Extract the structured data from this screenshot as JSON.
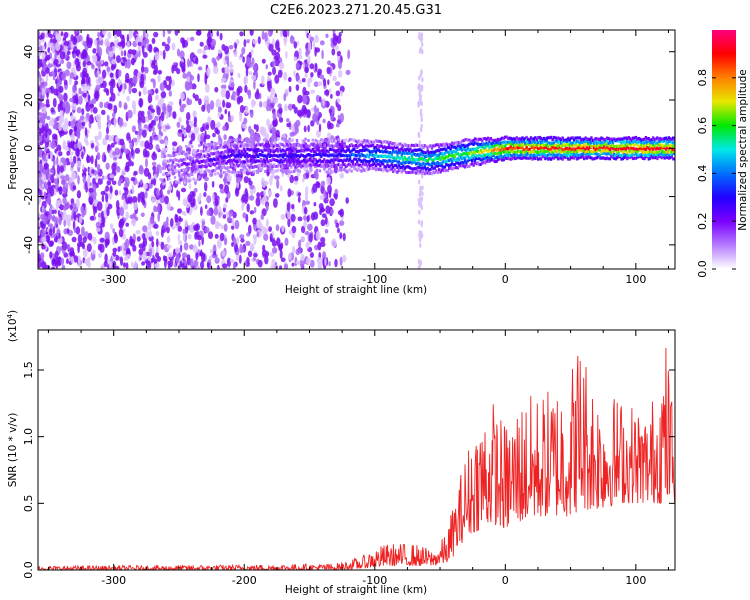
{
  "title": "C2E6.2023.271.20.45.G31",
  "chart_data": [
    {
      "type": "heatmap",
      "xlabel": "Height of straight line (km)",
      "ylabel": "Frequency (Hz)",
      "xlim": [
        -358,
        130
      ],
      "ylim": [
        -50,
        49
      ],
      "xticks": [
        -300,
        -200,
        -100,
        0,
        100
      ],
      "yticks": [
        -40,
        -20,
        0,
        20,
        40
      ],
      "colorbar": {
        "label": "Normalized spectral amplitude",
        "range": [
          0,
          1
        ],
        "ticks": [
          "0.0",
          "0.2",
          "0.4",
          "0.6",
          "0.8"
        ],
        "colormap": [
          "#ffffff",
          "#b57bff",
          "#7a00ff",
          "#2000ff",
          "#0070ff",
          "#00e8e8",
          "#00e800",
          "#e8e800",
          "#ff8000",
          "#ff0000",
          "#ff0080"
        ]
      },
      "ridge": {
        "description_values": "narrow band centered near 0 Hz; amplitude grows with height",
        "points": [
          {
            "x": -260,
            "freq": -8,
            "amp": 0.12
          },
          {
            "x": -230,
            "freq": -5,
            "amp": 0.2
          },
          {
            "x": -210,
            "freq": -3,
            "amp": 0.25
          },
          {
            "x": -130,
            "freq": -3,
            "amp": 0.3
          },
          {
            "x": -100,
            "freq": -3,
            "amp": 0.45
          },
          {
            "x": -60,
            "freq": -5,
            "amp": 0.55
          },
          {
            "x": -30,
            "freq": -2,
            "amp": 0.6
          },
          {
            "x": 0,
            "freq": 0,
            "amp": 0.85
          },
          {
            "x": 50,
            "freq": 0,
            "amp": 0.9
          },
          {
            "x": 100,
            "freq": 0,
            "amp": 0.9
          },
          {
            "x": 130,
            "freq": 0,
            "amp": 0.9
          }
        ]
      }
    },
    {
      "type": "line",
      "xlabel": "Height of straight line (km)",
      "ylabel": "SNR (10 * v/v)",
      "ylabel_exponent": "(x10",
      "ylabel_exponent_power": "4",
      "ylabel_exponent_close": ")",
      "xlim": [
        -358,
        130
      ],
      "ylim": [
        0,
        1.8
      ],
      "xticks": [
        -300,
        -200,
        -100,
        0,
        100
      ],
      "yticks": [
        "0.0",
        "0.5",
        "1.0",
        "1.5"
      ],
      "color": "#ee2222",
      "envelope": {
        "x": [
          -358,
          -200,
          -130,
          -110,
          -100,
          -90,
          -70,
          -55,
          -45,
          -40,
          -30,
          -20,
          -10,
          0,
          10,
          30,
          50,
          57,
          70,
          90,
          110,
          123,
          130
        ],
        "baseline": [
          0.0,
          0.0,
          0.0,
          0.01,
          0.02,
          0.03,
          0.03,
          0.03,
          0.05,
          0.1,
          0.25,
          0.3,
          0.35,
          0.3,
          0.35,
          0.4,
          0.4,
          0.45,
          0.45,
          0.5,
          0.5,
          0.5,
          0.5
        ],
        "peak": [
          0.03,
          0.04,
          0.05,
          0.1,
          0.17,
          0.2,
          0.2,
          0.15,
          0.28,
          0.5,
          0.9,
          1.2,
          1.3,
          1.1,
          1.3,
          1.35,
          1.55,
          1.8,
          1.4,
          1.3,
          1.2,
          1.75,
          1.2
        ]
      }
    }
  ]
}
